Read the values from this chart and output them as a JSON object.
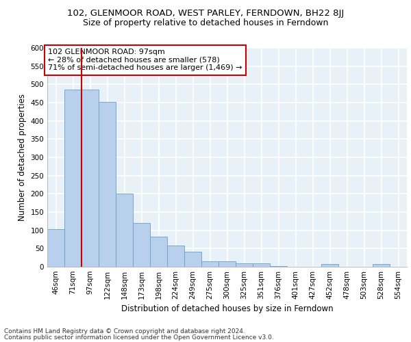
{
  "title1": "102, GLENMOOR ROAD, WEST PARLEY, FERNDOWN, BH22 8JJ",
  "title2": "Size of property relative to detached houses in Ferndown",
  "xlabel": "Distribution of detached houses by size in Ferndown",
  "ylabel": "Number of detached properties",
  "categories": [
    "46sqm",
    "71sqm",
    "97sqm",
    "122sqm",
    "148sqm",
    "173sqm",
    "198sqm",
    "224sqm",
    "249sqm",
    "275sqm",
    "300sqm",
    "325sqm",
    "351sqm",
    "376sqm",
    "401sqm",
    "427sqm",
    "452sqm",
    "478sqm",
    "503sqm",
    "528sqm",
    "554sqm"
  ],
  "values": [
    103,
    485,
    485,
    452,
    200,
    120,
    82,
    58,
    42,
    15,
    15,
    10,
    10,
    2,
    0,
    0,
    7,
    0,
    0,
    7,
    0
  ],
  "bar_color": "#b8d0eb",
  "bar_edge_color": "#6a9fc8",
  "highlight_index": 2,
  "highlight_line_color": "#cc0000",
  "annotation_text": "102 GLENMOOR ROAD: 97sqm\n← 28% of detached houses are smaller (578)\n71% of semi-detached houses are larger (1,469) →",
  "annotation_box_color": "#ffffff",
  "annotation_box_edge": "#cc0000",
  "ylim": [
    0,
    600
  ],
  "yticks": [
    0,
    50,
    100,
    150,
    200,
    250,
    300,
    350,
    400,
    450,
    500,
    550,
    600
  ],
  "footer1": "Contains HM Land Registry data © Crown copyright and database right 2024.",
  "footer2": "Contains public sector information licensed under the Open Government Licence v3.0.",
  "bg_color": "#e8f0f8",
  "grid_color": "#ffffff",
  "title1_fontsize": 9.5,
  "title2_fontsize": 9,
  "axis_label_fontsize": 8.5,
  "tick_fontsize": 7.5,
  "annotation_fontsize": 8,
  "footer_fontsize": 6.5
}
